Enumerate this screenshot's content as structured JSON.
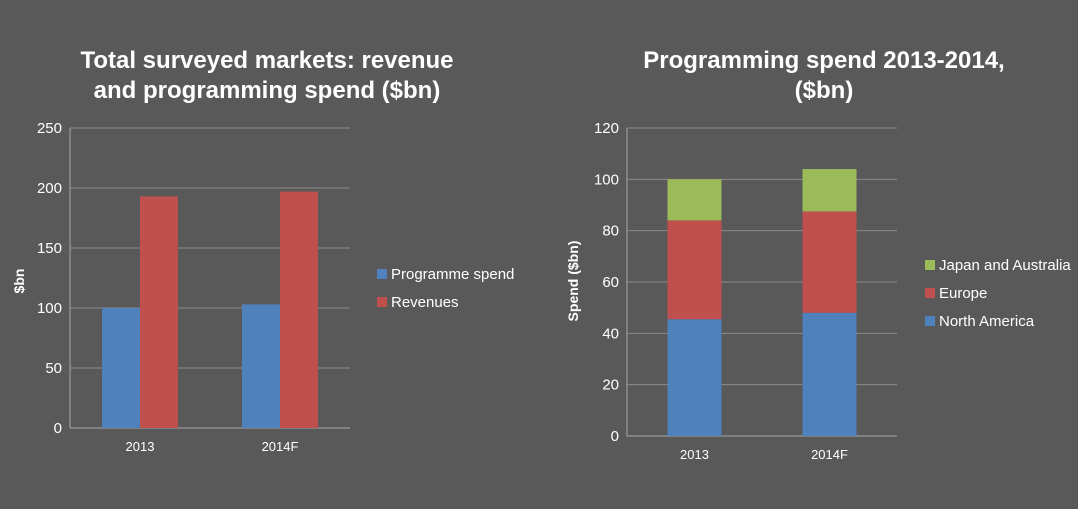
{
  "colors": {
    "background": "#595959",
    "blue": "#4f81bd",
    "red": "#c0504d",
    "green": "#9bbb59"
  },
  "chart_data": [
    {
      "type": "bar",
      "title_lines": [
        "Total surveyed markets: revenue",
        "and programming spend ($bn)"
      ],
      "ylabel": "$bn",
      "xlabel": "",
      "ylim": [
        0,
        250
      ],
      "yticks": [
        "0",
        "50",
        "100",
        "150",
        "200",
        "250"
      ],
      "categories": [
        "2013",
        "2014F"
      ],
      "series": [
        {
          "name": "Programme spend",
          "values": [
            100,
            103
          ],
          "color": "#4f81bd"
        },
        {
          "name": "Revenues",
          "values": [
            193,
            197
          ],
          "color": "#c0504d"
        }
      ],
      "legend_position": "right",
      "grid": true
    },
    {
      "type": "stacked-bar",
      "title_lines": [
        "Programming spend 2013-2014,",
        "($bn)"
      ],
      "ylabel": "Spend ($bn)",
      "xlabel": "",
      "ylim": [
        0,
        120
      ],
      "yticks": [
        "0",
        "20",
        "40",
        "60",
        "80",
        "100",
        "120"
      ],
      "categories": [
        "2013",
        "2014F"
      ],
      "series": [
        {
          "name": "North America",
          "values": [
            45.5,
            48
          ],
          "color": "#4f81bd"
        },
        {
          "name": "Europe",
          "values": [
            38.5,
            39.5
          ],
          "color": "#c0504d"
        },
        {
          "name": "Japan and Australia",
          "values": [
            16,
            16.5
          ],
          "color": "#9bbb59"
        }
      ],
      "legend_order": [
        "Japan and Australia",
        "Europe",
        "North America"
      ],
      "legend_position": "right",
      "grid": true
    }
  ]
}
